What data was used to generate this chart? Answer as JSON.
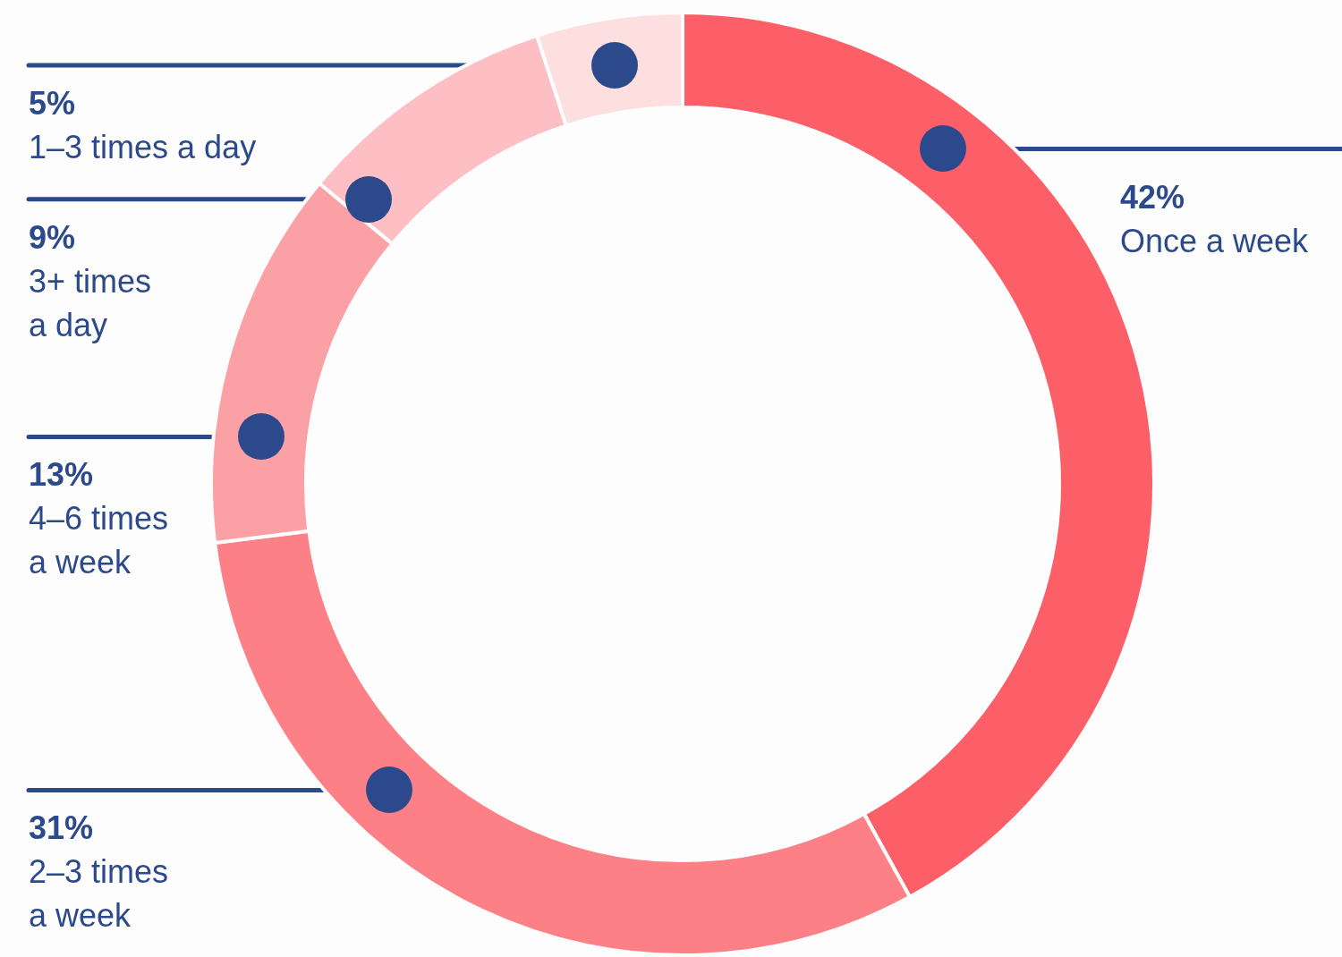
{
  "chart_data": {
    "type": "donut",
    "categories": [
      "Once a week",
      "2–3 times a week",
      "4–6 times a week",
      "3+ times a day",
      "1–3 times a day"
    ],
    "values": [
      42,
      31,
      13,
      9,
      5
    ],
    "colors": [
      "#fc5f68",
      "#fc8086",
      "#fba1a5",
      "#fdbfc3",
      "#fddfe0"
    ],
    "value_labels": [
      "42%",
      "31%",
      "13%",
      "9%",
      "5%"
    ]
  }
}
